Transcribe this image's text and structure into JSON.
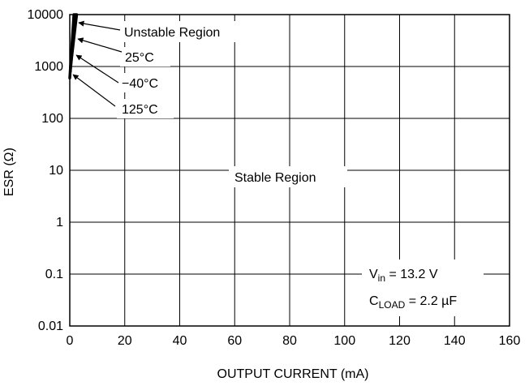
{
  "chart_data": {
    "type": "line",
    "x": {
      "label": "OUTPUT CURRENT (mA)",
      "range": [
        0,
        160
      ],
      "ticks": [
        0,
        20,
        40,
        60,
        80,
        100,
        120,
        140,
        160
      ],
      "tick_labels": [
        "0",
        "20",
        "40",
        "60",
        "80",
        "100",
        "120",
        "140",
        "160"
      ]
    },
    "y": {
      "label": "ESR (Ω)",
      "scale": "log",
      "range": [
        0.01,
        10000
      ],
      "ticks": [
        0.01,
        0.1,
        1,
        10,
        100,
        1000,
        10000
      ],
      "tick_labels": [
        "0.01",
        "0.1",
        "1",
        "10",
        "100",
        "1000",
        "10000"
      ]
    },
    "grid": true,
    "series": [
      {
        "name": "25°C",
        "points": [
          [
            0.3,
            1000
          ],
          [
            2.5,
            10000
          ]
        ]
      },
      {
        "name": "−40°C",
        "points": [
          [
            0.2,
            800
          ],
          [
            2.0,
            10000
          ]
        ]
      },
      {
        "name": "125°C",
        "points": [
          [
            0.0,
            600
          ],
          [
            1.5,
            10000
          ]
        ]
      }
    ],
    "region_labels": {
      "unstable": "Unstable Region",
      "stable": "Stable Region"
    },
    "conditions": {
      "vin_main": "V",
      "vin_sub": "in",
      "vin_value": " = 13.2 V",
      "cload_main": "C",
      "cload_sub": "LOAD",
      "cload_value": " = 2.2 µF"
    }
  }
}
